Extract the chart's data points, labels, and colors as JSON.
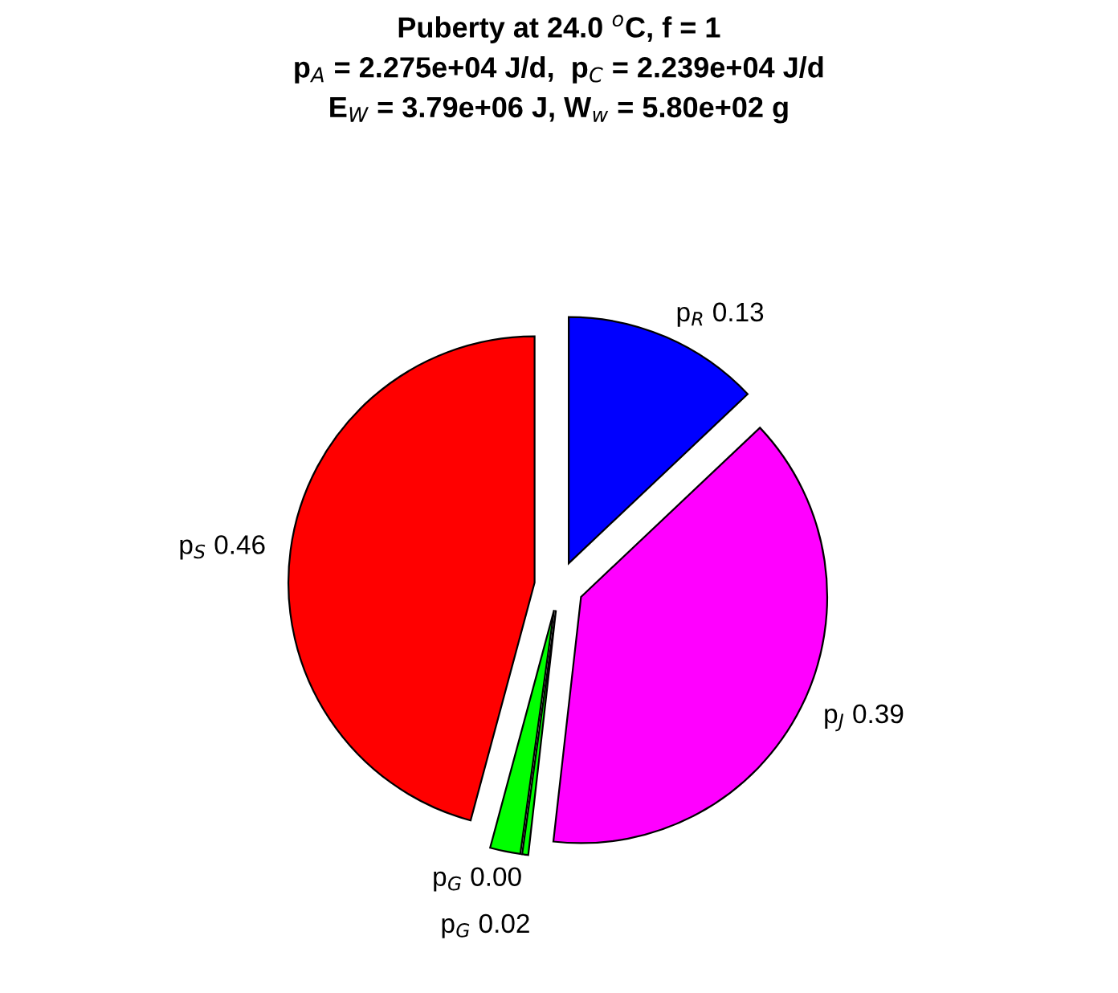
{
  "chart_data": {
    "type": "pie",
    "title": "Puberty at 24.0 $^{o}$C, f = 1\np$_{A}$ = 2.275e+04 J/d,  p$_{C}$ = 2.239e+04 J/d\nE$_{W}$ = 3.79e+06 J, W$_{w}$ = 5.80e+02 g",
    "categories": [
      "p$_{R}$",
      "p$_{J}$",
      "p$_{G}$",
      "p$_{G}$",
      "p$_{S}$"
    ],
    "values": [
      0.13,
      0.39,
      0.004,
      0.02,
      0.46
    ],
    "value_labels": [
      "0.13",
      "0.39",
      "0.00",
      "0.02",
      "0.46"
    ],
    "colors": [
      "#0000ff",
      "#ff00ff",
      "#00ff00",
      "#00ff00",
      "#ff0000"
    ],
    "legend": false
  }
}
